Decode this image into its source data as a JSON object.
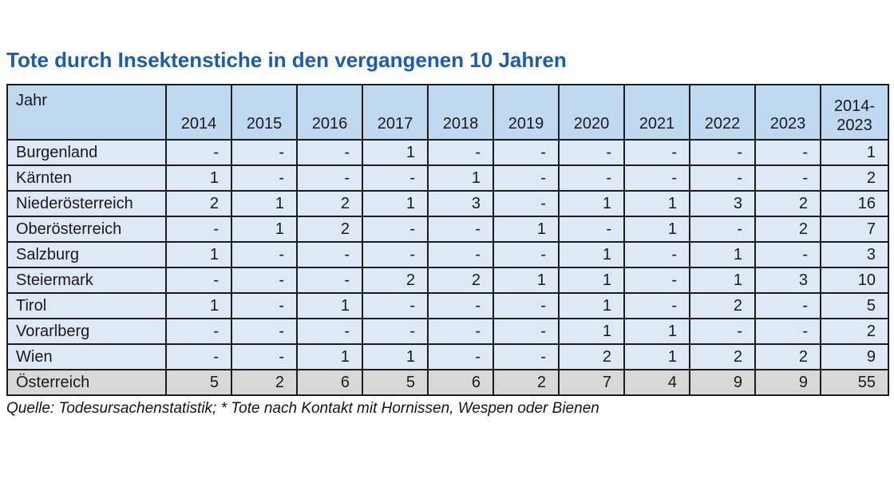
{
  "title": "Tote durch Insektenstiche in den vergangenen 10 Jahren",
  "footnote": "Quelle: Todesursachenstatistik; * Tote nach Kontakt mit Hornissen, Wespen oder Bienen",
  "colors": {
    "title_blue": "#1a5cb0",
    "header_bg": "#bfd9f0",
    "row_bg": "#dde9f5",
    "total_row_bg": "#d8d8d8",
    "border": "#1c1c1c"
  },
  "chart_data": {
    "type": "table",
    "title": "Tote durch Insektenstiche in den vergangenen 10 Jahren",
    "corner_label": "Jahr",
    "columns": [
      "2014",
      "2015",
      "2016",
      "2017",
      "2018",
      "2019",
      "2020",
      "2021",
      "2022",
      "2023",
      "2014-2023"
    ],
    "rows": [
      {
        "label": "Burgenland",
        "values": [
          "-",
          "-",
          "-",
          "1",
          "-",
          "-",
          "-",
          "-",
          "-",
          "-"
        ],
        "total": "1"
      },
      {
        "label": "Kärnten",
        "values": [
          "1",
          "-",
          "-",
          "-",
          "1",
          "-",
          "-",
          "-",
          "-",
          "-"
        ],
        "total": "2"
      },
      {
        "label": "Niederösterreich",
        "values": [
          "2",
          "1",
          "2",
          "1",
          "3",
          "-",
          "1",
          "1",
          "3",
          "2"
        ],
        "total": "16"
      },
      {
        "label": "Oberösterreich",
        "values": [
          "-",
          "1",
          "2",
          "-",
          "-",
          "1",
          "-",
          "1",
          "-",
          "2"
        ],
        "total": "7"
      },
      {
        "label": "Salzburg",
        "values": [
          "1",
          "-",
          "-",
          "-",
          "-",
          "-",
          "1",
          "-",
          "1",
          "-"
        ],
        "total": "3"
      },
      {
        "label": "Steiermark",
        "values": [
          "-",
          "-",
          "-",
          "2",
          "2",
          "1",
          "1",
          "-",
          "1",
          "3"
        ],
        "total": "10"
      },
      {
        "label": "Tirol",
        "values": [
          "1",
          "-",
          "1",
          "-",
          "-",
          "-",
          "1",
          "-",
          "2",
          "-"
        ],
        "total": "5"
      },
      {
        "label": "Vorarlberg",
        "values": [
          "-",
          "-",
          "-",
          "-",
          "-",
          "-",
          "1",
          "1",
          "-",
          "-"
        ],
        "total": "2"
      },
      {
        "label": "Wien",
        "values": [
          "-",
          "-",
          "1",
          "1",
          "-",
          "-",
          "2",
          "1",
          "2",
          "2"
        ],
        "total": "9"
      }
    ],
    "total_row": {
      "label": "Österreich",
      "values": [
        "5",
        "2",
        "6",
        "5",
        "6",
        "2",
        "7",
        "4",
        "9",
        "9"
      ],
      "total": "55"
    },
    "source_note": "Quelle: Todesursachenstatistik; * Tote nach Kontakt mit Hornissen, Wespen oder Bienen"
  }
}
